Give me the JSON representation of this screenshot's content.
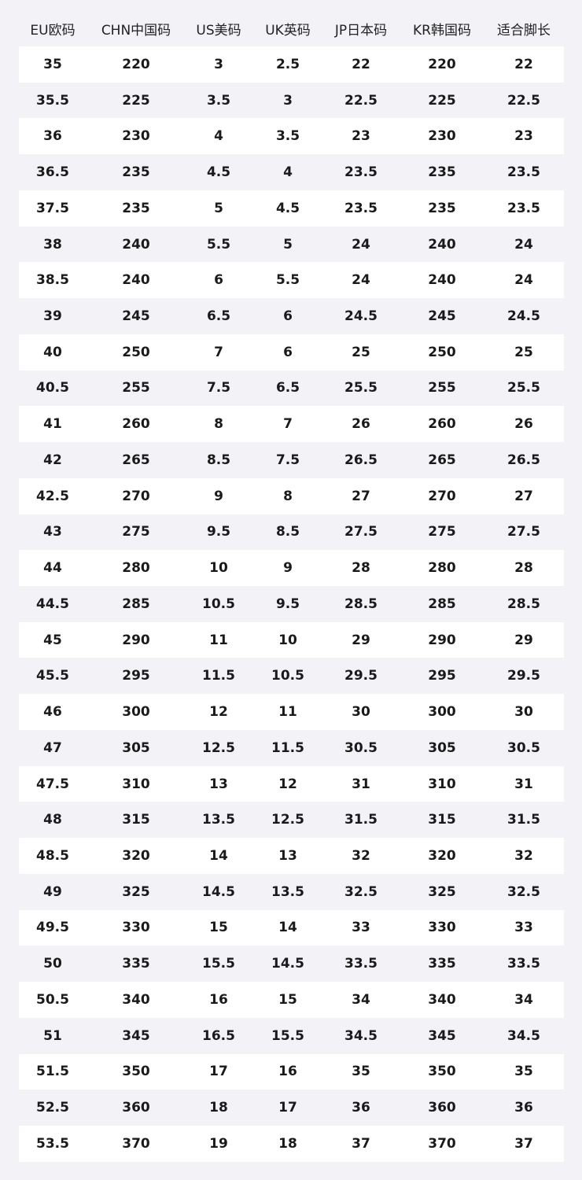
{
  "headers": [
    "EU欧码",
    "CHN中国码",
    "US美码",
    "UK英码",
    "JP日本码",
    "KR韩国码",
    "适合脚长"
  ],
  "rows": [
    [
      "35",
      "220",
      "3",
      "2.5",
      "22",
      "220",
      "22"
    ],
    [
      "35.5",
      "225",
      "3.5",
      "3",
      "22.5",
      "225",
      "22.5"
    ],
    [
      "36",
      "230",
      "4",
      "3.5",
      "23",
      "230",
      "23"
    ],
    [
      "36.5",
      "235",
      "4.5",
      "4",
      "23.5",
      "235",
      "23.5"
    ],
    [
      "37.5",
      "235",
      "5",
      "4.5",
      "23.5",
      "235",
      "23.5"
    ],
    [
      "38",
      "240",
      "5.5",
      "5",
      "24",
      "240",
      "24"
    ],
    [
      "38.5",
      "240",
      "6",
      "5.5",
      "24",
      "240",
      "24"
    ],
    [
      "39",
      "245",
      "6.5",
      "6",
      "24.5",
      "245",
      "24.5"
    ],
    [
      "40",
      "250",
      "7",
      "6",
      "25",
      "250",
      "25"
    ],
    [
      "40.5",
      "255",
      "7.5",
      "6.5",
      "25.5",
      "255",
      "25.5"
    ],
    [
      "41",
      "260",
      "8",
      "7",
      "26",
      "260",
      "26"
    ],
    [
      "42",
      "265",
      "8.5",
      "7.5",
      "26.5",
      "265",
      "26.5"
    ],
    [
      "42.5",
      "270",
      "9",
      "8",
      "27",
      "270",
      "27"
    ],
    [
      "43",
      "275",
      "9.5",
      "8.5",
      "27.5",
      "275",
      "27.5"
    ],
    [
      "44",
      "280",
      "10",
      "9",
      "28",
      "280",
      "28"
    ],
    [
      "44.5",
      "285",
      "10.5",
      "9.5",
      "28.5",
      "285",
      "28.5"
    ],
    [
      "45",
      "290",
      "11",
      "10",
      "29",
      "290",
      "29"
    ],
    [
      "45.5",
      "295",
      "11.5",
      "10.5",
      "29.5",
      "295",
      "29.5"
    ],
    [
      "46",
      "300",
      "12",
      "11",
      "30",
      "300",
      "30"
    ],
    [
      "47",
      "305",
      "12.5",
      "11.5",
      "30.5",
      "305",
      "30.5"
    ],
    [
      "47.5",
      "310",
      "13",
      "12",
      "31",
      "310",
      "31"
    ],
    [
      "48",
      "315",
      "13.5",
      "12.5",
      "31.5",
      "315",
      "31.5"
    ],
    [
      "48.5",
      "320",
      "14",
      "13",
      "32",
      "320",
      "32"
    ],
    [
      "49",
      "325",
      "14.5",
      "13.5",
      "32.5",
      "325",
      "32.5"
    ],
    [
      "49.5",
      "330",
      "15",
      "14",
      "33",
      "330",
      "33"
    ],
    [
      "50",
      "335",
      "15.5",
      "14.5",
      "33.5",
      "335",
      "33.5"
    ],
    [
      "50.5",
      "340",
      "16",
      "15",
      "34",
      "340",
      "34"
    ],
    [
      "51",
      "345",
      "16.5",
      "15.5",
      "34.5",
      "345",
      "34.5"
    ],
    [
      "51.5",
      "350",
      "17",
      "16",
      "35",
      "350",
      "35"
    ],
    [
      "52.5",
      "360",
      "18",
      "17",
      "36",
      "360",
      "36"
    ],
    [
      "53.5",
      "370",
      "19",
      "18",
      "37",
      "370",
      "37"
    ]
  ],
  "colors": {
    "background": "#f2f2f7",
    "row_alt": "#ffffff",
    "text": "#1a1a1a"
  }
}
